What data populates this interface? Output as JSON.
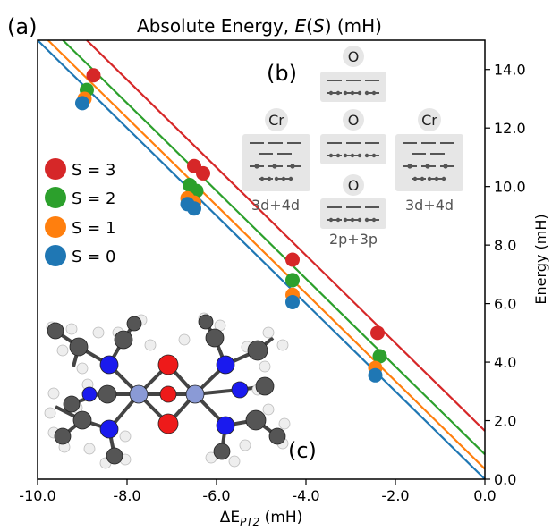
{
  "panel_labels": {
    "a": "(a)",
    "b": "(b)",
    "c": "(c)"
  },
  "colors": {
    "S3": "#d62728",
    "S2": "#2ca02c",
    "S1": "#ff7f0e",
    "S0": "#1f77b4",
    "inset_box": "#e6e6e6",
    "orbital": "#555555",
    "atom_C": "#555555",
    "atom_H": "#eeeeee",
    "atom_N": "#1a1aee",
    "atom_O": "#ee1a1a",
    "atom_Cr": "#8a9ad6"
  },
  "chart_data": {
    "type": "scatter",
    "title_prefix": "Absolute Energy, ",
    "title_symbol": "E",
    "title_arg": "S",
    "title_suffix": " (mH)",
    "xlabel_prefix": "ΔE",
    "xlabel_sub": "PT2",
    "xlabel_suffix": " (mH)",
    "ylabel": "Energy (mH)",
    "xlim": [
      -10.0,
      0.0
    ],
    "ylim": [
      0.0,
      15.0
    ],
    "xticks": [
      -10.0,
      -8.0,
      -6.0,
      -4.0,
      -2.0,
      0.0
    ],
    "xtick_labels": [
      "-10.0",
      "-8.0",
      "-6.0",
      "-4.0",
      "-2.0",
      "0.0"
    ],
    "yticks": [
      0.0,
      2.0,
      4.0,
      6.0,
      8.0,
      10.0,
      12.0,
      14.0
    ],
    "ytick_labels": [
      "0.0",
      "2.0",
      "4.0",
      "6.0",
      "8.0",
      "10.0",
      "12.0",
      "14.0"
    ],
    "legend_position": "left",
    "series": [
      {
        "name": "S = 3",
        "color": "#d62728",
        "fit_intercept": 1.65,
        "points": [
          [
            -8.75,
            13.8
          ],
          [
            -6.5,
            10.7
          ],
          [
            -6.3,
            10.45
          ],
          [
            -4.3,
            7.5
          ],
          [
            -2.4,
            5.0
          ]
        ]
      },
      {
        "name": "S = 2",
        "color": "#2ca02c",
        "fit_intercept": 0.85,
        "points": [
          [
            -8.9,
            13.3
          ],
          [
            -6.6,
            10.05
          ],
          [
            -6.45,
            9.85
          ],
          [
            -4.3,
            6.8
          ],
          [
            -2.35,
            4.2
          ]
        ]
      },
      {
        "name": "S = 1",
        "color": "#ff7f0e",
        "fit_intercept": 0.35,
        "points": [
          [
            -8.95,
            13.0
          ],
          [
            -6.65,
            9.6
          ],
          [
            -6.5,
            9.45
          ],
          [
            -4.3,
            6.3
          ],
          [
            -2.45,
            3.8
          ]
        ]
      },
      {
        "name": "S = 0",
        "color": "#1f77b4",
        "fit_intercept": 0.0,
        "points": [
          [
            -9.0,
            12.85
          ],
          [
            -6.65,
            9.4
          ],
          [
            -6.5,
            9.25
          ],
          [
            -4.3,
            6.05
          ],
          [
            -2.45,
            3.55
          ]
        ]
      }
    ]
  },
  "inset_b": {
    "cr_label": "Cr",
    "o_label": "O",
    "cr_space_label": "3d+4d",
    "o_space_label": "2p+3p"
  }
}
